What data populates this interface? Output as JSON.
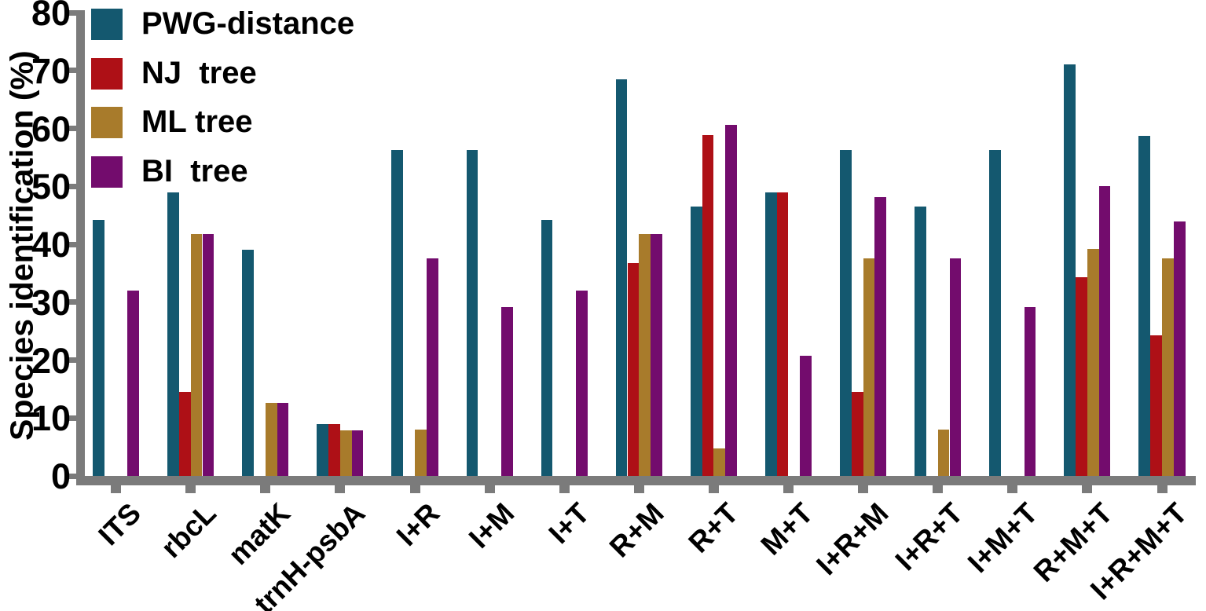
{
  "chart_data": {
    "type": "bar",
    "title": "",
    "xlabel": "",
    "ylabel": "Species identification (%)",
    "ylim": [
      0,
      80
    ],
    "yticks": [
      0,
      10,
      20,
      30,
      40,
      50,
      60,
      70,
      80
    ],
    "grid": false,
    "legend_position": "top-left",
    "background_color": "#ffffff",
    "axis_color": "#7b7b7b",
    "text_color": "#000000",
    "categories": [
      "ITS",
      "rbcL",
      "matK",
      "trnH-psbA",
      "I+R",
      "I+M",
      "I+T",
      "R+M",
      "R+T",
      "M+T",
      "I+R+M",
      "I+R+T",
      "I+M+T",
      "R+M+T",
      "I+R+M+T"
    ],
    "series": [
      {
        "name": "PWG-distance",
        "color": "#14586f",
        "values": [
          44.2,
          49.0,
          39.1,
          9.0,
          56.3,
          56.3,
          44.2,
          68.5,
          46.5,
          48.9,
          56.3,
          46.5,
          56.3,
          71.1,
          58.7
        ]
      },
      {
        "name": "NJ  tree",
        "color": "#ae1016",
        "values": [
          0,
          14.5,
          0,
          9.0,
          0,
          0,
          0,
          36.7,
          58.8,
          48.9,
          14.5,
          0,
          0,
          34.3,
          24.3
        ]
      },
      {
        "name": "ML tree",
        "color": "#a87b2b",
        "values": [
          0,
          41.7,
          12.6,
          7.8,
          8.0,
          0,
          0,
          41.7,
          4.8,
          0,
          37.6,
          8.0,
          0,
          39.2,
          37.6
        ]
      },
      {
        "name": "BI  tree",
        "color": "#730c6d",
        "values": [
          32.0,
          41.7,
          12.6,
          7.8,
          37.6,
          29.2,
          32.0,
          41.7,
          60.6,
          20.8,
          48.1,
          37.6,
          29.2,
          50.1,
          43.9
        ]
      }
    ]
  }
}
